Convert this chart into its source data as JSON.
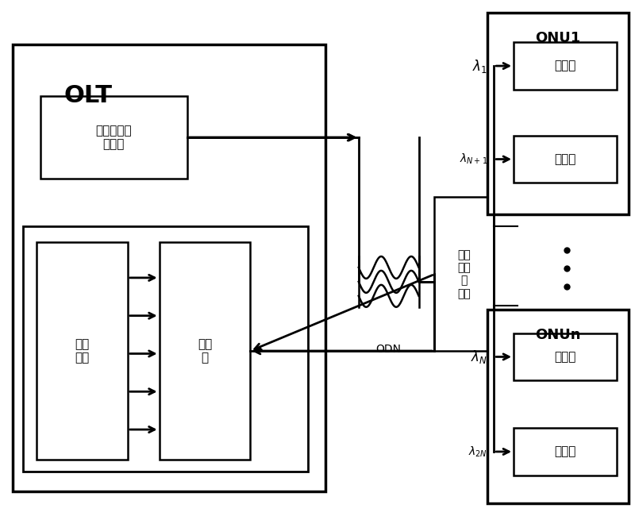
{
  "bg_color": "#ffffff",
  "lc": "#000000",
  "fig_w": 8.0,
  "fig_h": 6.5,
  "dpi": 100,
  "olt_label": "OLT",
  "tx_label": "多波长光源\n发射机",
  "demux_label": "解复\n用",
  "recv_label": "接收\n阵列",
  "wdm_label": "波分\n复用\n解\n复用",
  "odn_label": "ODN",
  "onu1_label": "ONU1",
  "onun_label": "ONUn",
  "fa_label": "发射机",
  "jsr_label": "接收机"
}
